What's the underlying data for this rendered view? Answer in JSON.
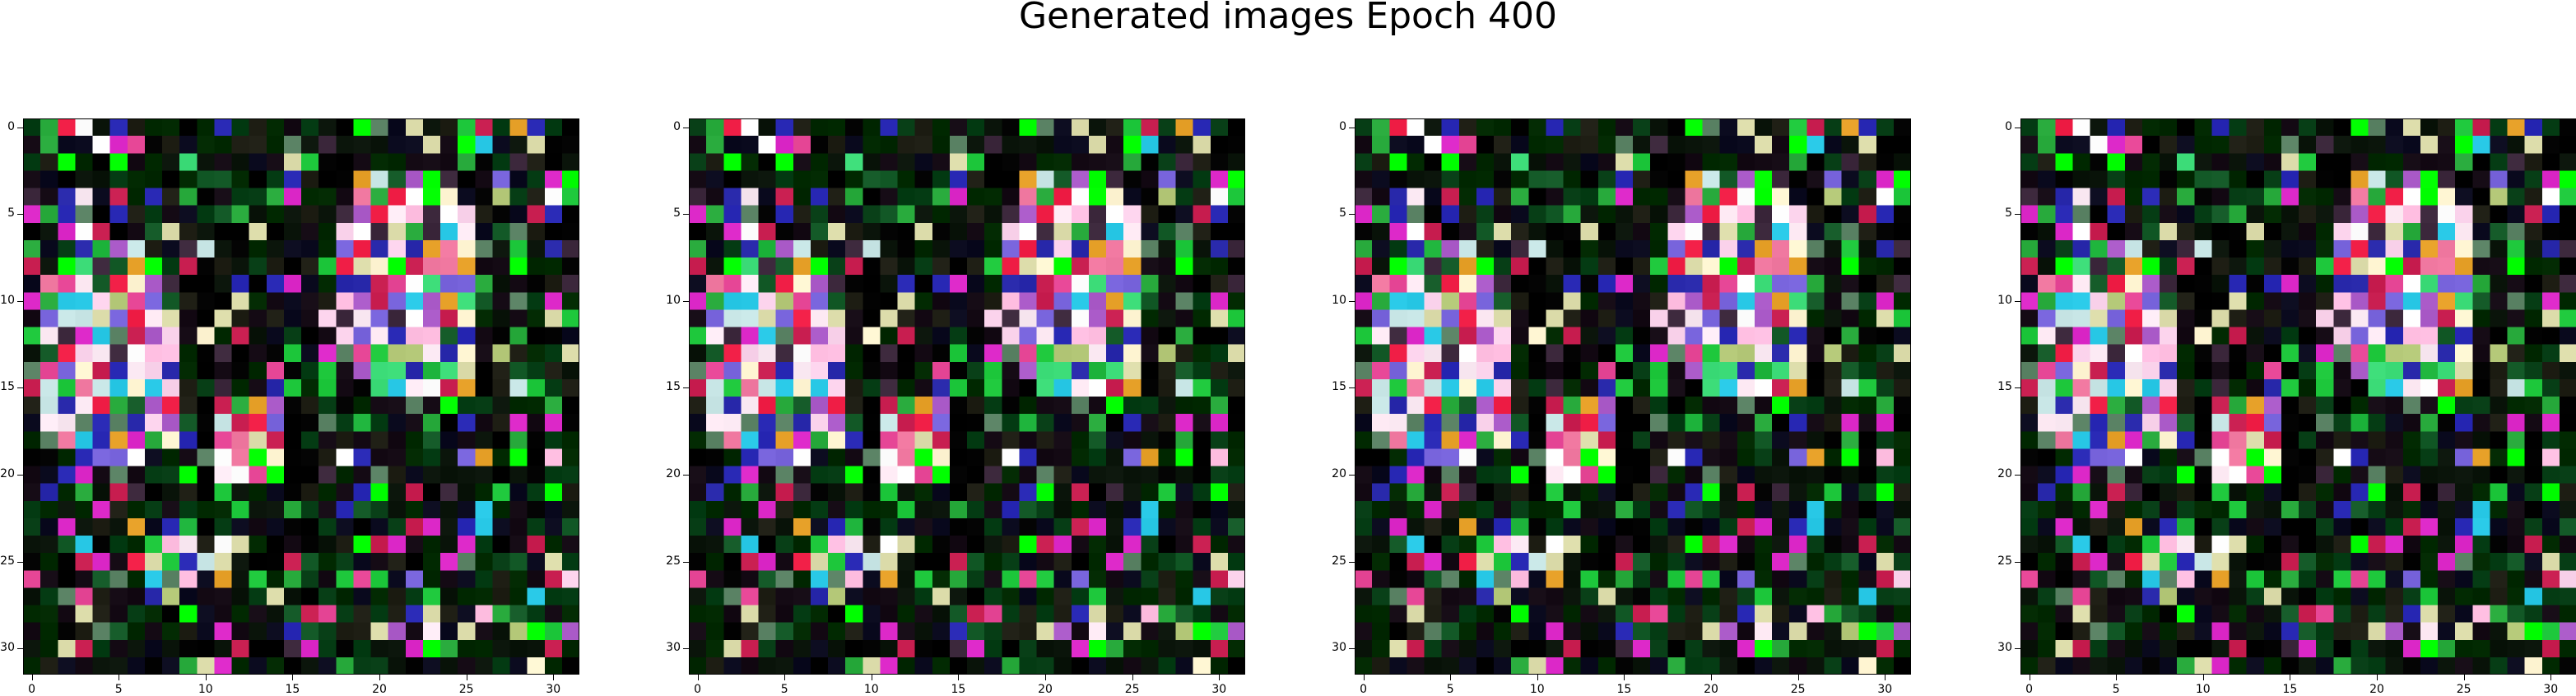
{
  "figure": {
    "title": "Generated images Epoch 400",
    "panels": 4,
    "image_size": 32,
    "x_ticks": [
      "0",
      "5",
      "10",
      "15",
      "20",
      "25",
      "30"
    ],
    "y_ticks": [
      "0",
      "5",
      "10",
      "15",
      "20",
      "25",
      "30"
    ]
  }
}
